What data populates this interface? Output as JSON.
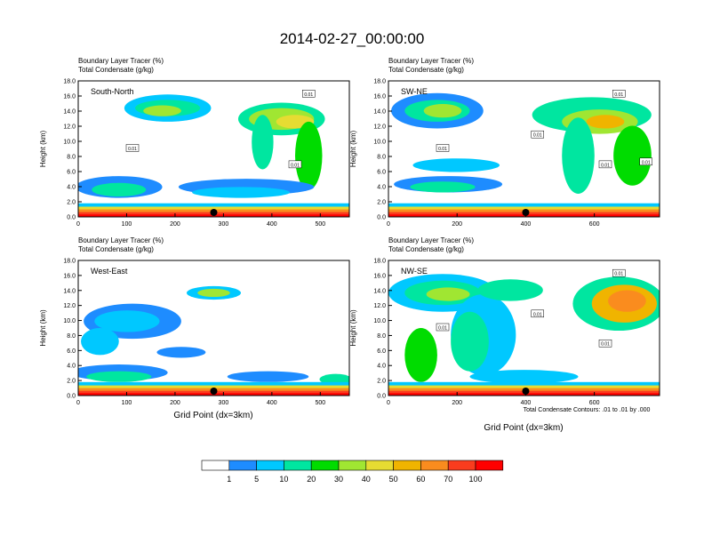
{
  "figure": {
    "title": "2014-02-27_00:00:00",
    "footnote": "Total Condensate Contours: .01 to .01 by .000",
    "xlabel": "Grid Point (dx=3km)"
  },
  "colorbar": {
    "colors": [
      "#ffffff",
      "#1e8cff",
      "#00c8ff",
      "#00e6a0",
      "#00dc00",
      "#a0e632",
      "#e6dc32",
      "#f0b400",
      "#fa8c1e",
      "#fa3c1e",
      "#ff0000"
    ],
    "labels": [
      "1",
      "5",
      "10",
      "20",
      "30",
      "40",
      "50",
      "60",
      "70",
      "100"
    ]
  },
  "chart_data": [
    {
      "type": "heatmap",
      "panel": "South-North",
      "line1": "Boundary Layer Tracer   (%)",
      "line2": "Total Condensate   (g/kg)",
      "ylabel": "Height (km)",
      "xlim": [
        0,
        560
      ],
      "ylim": [
        0,
        18
      ],
      "xticks": [
        "0",
        "100",
        "200",
        "300",
        "400",
        "500"
      ],
      "yticks": [
        "0.0",
        "2.0",
        "4.0",
        "6.0",
        "8.0",
        "10.0",
        "12.0",
        "14.0",
        "16.0",
        "18.0"
      ],
      "marker_x": 280,
      "contour_labels": [
        "0.01",
        "0.01",
        "0.01"
      ]
    },
    {
      "type": "heatmap",
      "panel": "SW-NE",
      "line1": "Boundary Layer Tracer   (%)",
      "line2": "Total Condensate   (g/kg)",
      "ylabel": "Height (km)",
      "xlim": [
        0,
        790
      ],
      "ylim": [
        0,
        18
      ],
      "xticks": [
        "0",
        "200",
        "400",
        "600"
      ],
      "yticks": [
        "0.0",
        "2.0",
        "4.0",
        "6.0",
        "8.0",
        "10.0",
        "12.0",
        "14.0",
        "16.0",
        "18.0"
      ],
      "marker_x": 400,
      "contour_labels": [
        "0.01",
        "0.01",
        "0.01",
        "0.01",
        "0.01"
      ]
    },
    {
      "type": "heatmap",
      "panel": "West-East",
      "line1": "Boundary Layer Tracer   (%)",
      "line2": "Total Condensate   (g/kg)",
      "ylabel": "Height (km)",
      "xlim": [
        0,
        560
      ],
      "ylim": [
        0,
        18
      ],
      "xticks": [
        "0",
        "100",
        "200",
        "300",
        "400",
        "500"
      ],
      "yticks": [
        "0.0",
        "2.0",
        "4.0",
        "6.0",
        "8.0",
        "10.0",
        "12.0",
        "14.0",
        "16.0",
        "18.0"
      ],
      "marker_x": 280,
      "contour_labels": []
    },
    {
      "type": "heatmap",
      "panel": "NW-SE",
      "line1": "Boundary Layer Tracer   (%)",
      "line2": "Total Condensate   (g/kg)",
      "ylabel": "Height (km)",
      "xlim": [
        0,
        790
      ],
      "ylim": [
        0,
        18
      ],
      "xticks": [
        "0",
        "200",
        "400",
        "600"
      ],
      "yticks": [
        "0.0",
        "2.0",
        "4.0",
        "6.0",
        "8.0",
        "10.0",
        "12.0",
        "14.0",
        "16.0",
        "18.0"
      ],
      "marker_x": 400,
      "contour_labels": [
        "0.01",
        "0.01",
        "0.01",
        "0.01"
      ]
    }
  ]
}
